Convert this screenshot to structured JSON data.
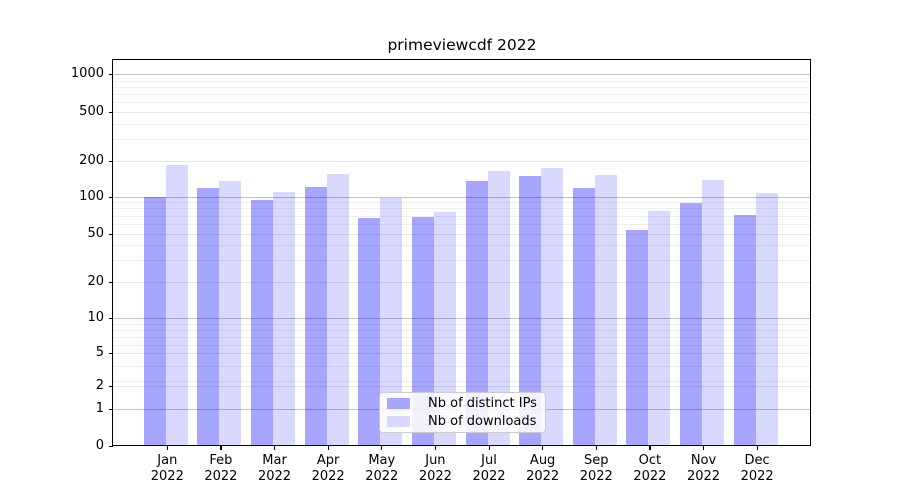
{
  "title": "primeviewcdf 2022",
  "y_axis": {
    "tick_labels": [
      "1000",
      "500",
      "200",
      "100",
      "50",
      "20",
      "10",
      "5",
      "2",
      "1",
      "0"
    ]
  },
  "x_axis": {
    "months": [
      "Jan",
      "Feb",
      "Mar",
      "Apr",
      "May",
      "Jun",
      "Jul",
      "Aug",
      "Sep",
      "Oct",
      "Nov",
      "Dec"
    ],
    "year": "2022"
  },
  "legend": {
    "items": [
      {
        "label": "Nb of distinct IPs",
        "color": "#a6a6ff"
      },
      {
        "label": "Nb of downloads",
        "color": "#d9d9ff"
      }
    ]
  },
  "chart_data": {
    "type": "bar",
    "title": "primeviewcdf 2022",
    "categories": [
      "Jan 2022",
      "Feb 2022",
      "Mar 2022",
      "Apr 2022",
      "May 2022",
      "Jun 2022",
      "Jul 2022",
      "Aug 2022",
      "Sep 2022",
      "Oct 2022",
      "Nov 2022",
      "Dec 2022"
    ],
    "series": [
      {
        "name": "Nb of distinct IPs",
        "color": "#a6a6ff",
        "values": [
          100,
          117,
          94,
          121,
          67,
          68,
          134,
          149,
          118,
          53,
          89,
          71
        ]
      },
      {
        "name": "Nb of downloads",
        "color": "#d9d9ff",
        "values": [
          183,
          135,
          109,
          153,
          98,
          75,
          163,
          171,
          152,
          76,
          137,
          108
        ]
      }
    ],
    "xlabel": "",
    "ylabel": "",
    "yscale": "symlog",
    "y_ticks": [
      0,
      1,
      2,
      5,
      10,
      20,
      50,
      100,
      200,
      500,
      1000
    ],
    "ylim": [
      0,
      1400
    ],
    "grid": "horizontal, major and minor",
    "legend_position": "lower center"
  }
}
